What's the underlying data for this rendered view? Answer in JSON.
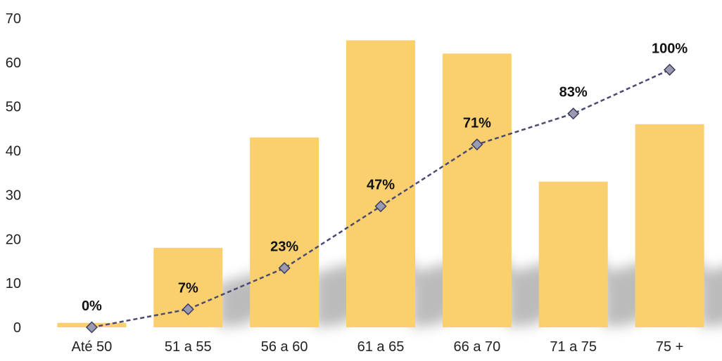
{
  "chart_data": {
    "type": "bar",
    "categories": [
      "Até 50",
      "51 a 55",
      "56 a 60",
      "61 a 65",
      "66 a 70",
      "71 a 75",
      "75 +"
    ],
    "values": [
      1,
      18,
      43,
      65,
      62,
      33,
      46
    ],
    "ylim": [
      0,
      70
    ],
    "yticks": [
      0,
      10,
      20,
      30,
      40,
      50,
      60,
      70
    ],
    "grid": false,
    "line_series": {
      "type": "line",
      "values": [
        0,
        7,
        23,
        47,
        71,
        83,
        100
      ],
      "labels": [
        "0%",
        "7%",
        "23%",
        "47%",
        "71%",
        "83%",
        "100%"
      ],
      "scale_max": 120,
      "marker": "diamond",
      "style": "dashed"
    },
    "colors": {
      "bar": "#FAD06F",
      "line": "#4A4A72",
      "marker_fill": "#9A9AB0",
      "marker_stroke": "#3E3E60"
    }
  }
}
